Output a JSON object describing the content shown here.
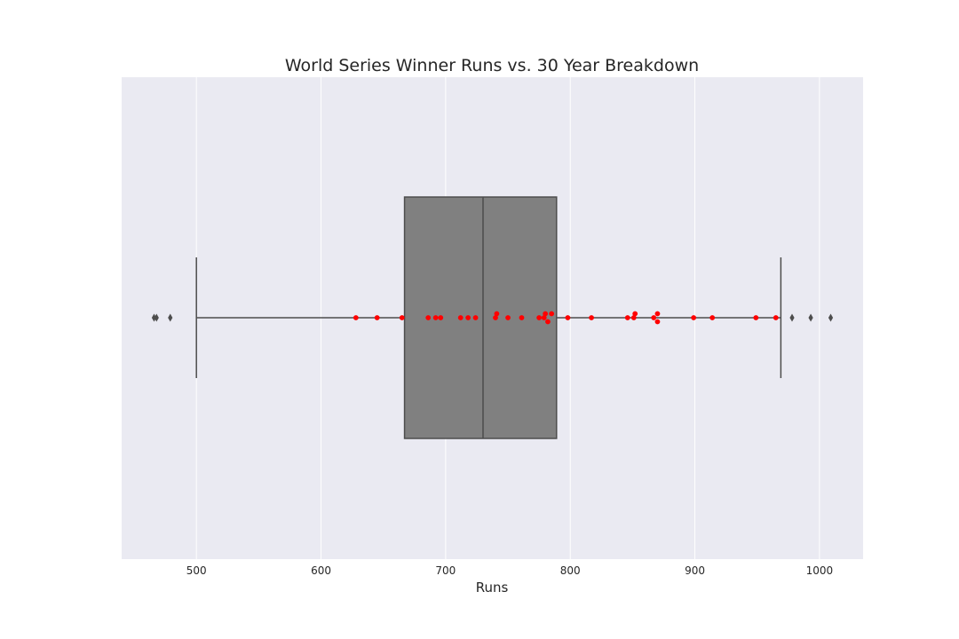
{
  "chart_data": {
    "type": "box",
    "title": "World Series Winner Runs vs. 30 Year Breakdown",
    "xlabel": "Runs",
    "ylabel": "",
    "xlim": [
      440,
      1035
    ],
    "xticks": [
      500,
      600,
      700,
      800,
      900,
      1000
    ],
    "grid": true,
    "legend": "none",
    "colors": {
      "plot_background": "#EAEAF2",
      "grid": "#FFFFFF",
      "box_fill": "#808080",
      "box_edge": "#4D4D4D",
      "outlier": "#4D4D4D",
      "points": "#FF0000"
    },
    "box": {
      "whisker_low": 500,
      "q1": 667,
      "median": 730,
      "q3": 789,
      "whisker_high": 969,
      "outliers": [
        466,
        468,
        479,
        978,
        993,
        1009
      ]
    },
    "points": [
      628,
      645,
      665,
      686,
      692,
      696,
      712,
      718,
      724,
      740,
      741,
      750,
      761,
      775,
      779,
      780,
      782,
      785,
      798,
      817,
      846,
      851,
      852,
      867,
      870,
      870,
      899,
      914,
      949,
      965
    ]
  }
}
